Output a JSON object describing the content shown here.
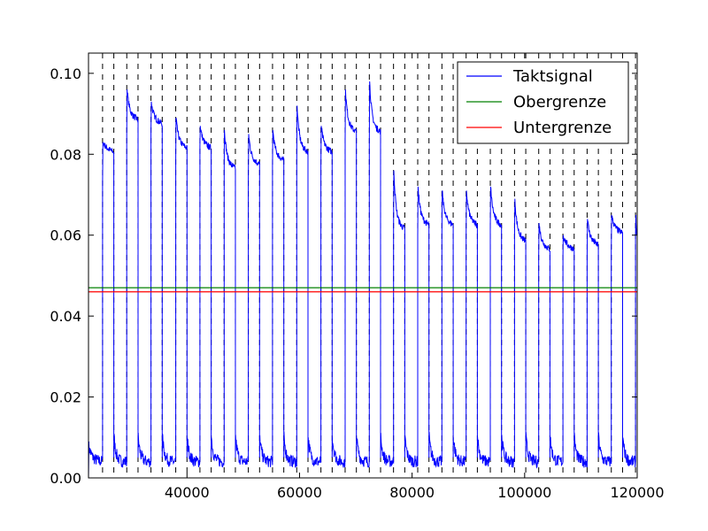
{
  "chart_data": {
    "type": "line",
    "title": "",
    "xlabel": "",
    "ylabel": "",
    "xlim": [
      22500,
      120000
    ],
    "ylim": [
      0,
      0.105
    ],
    "x_ticks": [
      40000,
      60000,
      80000,
      100000,
      120000
    ],
    "x_tick_labels": [
      "40000",
      "60000",
      "80000",
      "100000",
      "120000"
    ],
    "y_ticks": [
      0.0,
      0.02,
      0.04,
      0.06,
      0.08,
      0.1
    ],
    "y_tick_labels": [
      "0.00",
      "0.02",
      "0.04",
      "0.06",
      "0.08",
      "0.10"
    ],
    "grid": false,
    "legend_position": "top-right",
    "series": [
      {
        "name": "Taktsignal",
        "color": "#0000ff",
        "style": "solid"
      },
      {
        "name": "Obergrenze",
        "color": "#008000",
        "style": "solid",
        "value": 0.047
      },
      {
        "name": "Untergrenze",
        "color": "#ff0000",
        "style": "solid",
        "value": 0.046
      }
    ],
    "pulses": [
      {
        "rise": 25000,
        "fall": 27000,
        "start": 0.073,
        "peak": 0.083,
        "level": 0.082
      },
      {
        "rise": 29300,
        "fall": 31300,
        "start": 0.085,
        "peak": 0.096,
        "level": 0.09
      },
      {
        "rise": 33600,
        "fall": 35600,
        "start": 0.086,
        "peak": 0.093,
        "level": 0.089
      },
      {
        "rise": 38000,
        "fall": 40000,
        "start": 0.079,
        "peak": 0.089,
        "level": 0.083
      },
      {
        "rise": 42300,
        "fall": 44300,
        "start": 0.082,
        "peak": 0.087,
        "level": 0.083
      },
      {
        "rise": 46600,
        "fall": 48600,
        "start": 0.077,
        "peak": 0.086,
        "level": 0.078
      },
      {
        "rise": 50900,
        "fall": 52900,
        "start": 0.074,
        "peak": 0.085,
        "level": 0.079
      },
      {
        "rise": 55200,
        "fall": 57200,
        "start": 0.077,
        "peak": 0.086,
        "level": 0.08
      },
      {
        "rise": 59500,
        "fall": 61500,
        "start": 0.078,
        "peak": 0.092,
        "level": 0.082
      },
      {
        "rise": 63800,
        "fall": 65800,
        "start": 0.077,
        "peak": 0.087,
        "level": 0.082
      },
      {
        "rise": 68100,
        "fall": 70100,
        "start": 0.084,
        "peak": 0.096,
        "level": 0.087
      },
      {
        "rise": 72400,
        "fall": 74400,
        "start": 0.083,
        "peak": 0.098,
        "level": 0.087
      },
      {
        "rise": 76700,
        "fall": 78700,
        "start": 0.062,
        "peak": 0.076,
        "level": 0.063
      },
      {
        "rise": 81000,
        "fall": 83000,
        "start": 0.06,
        "peak": 0.072,
        "level": 0.064
      },
      {
        "rise": 85300,
        "fall": 87300,
        "start": 0.06,
        "peak": 0.071,
        "level": 0.064
      },
      {
        "rise": 89600,
        "fall": 91600,
        "start": 0.06,
        "peak": 0.071,
        "level": 0.064
      },
      {
        "rise": 93900,
        "fall": 95900,
        "start": 0.062,
        "peak": 0.072,
        "level": 0.064
      },
      {
        "rise": 98200,
        "fall": 100200,
        "start": 0.059,
        "peak": 0.069,
        "level": 0.06
      },
      {
        "rise": 102500,
        "fall": 104500,
        "start": 0.055,
        "peak": 0.063,
        "level": 0.058
      },
      {
        "rise": 106800,
        "fall": 108800,
        "start": 0.055,
        "peak": 0.06,
        "level": 0.058
      },
      {
        "rise": 111100,
        "fall": 113100,
        "start": 0.055,
        "peak": 0.064,
        "level": 0.059
      },
      {
        "rise": 115400,
        "fall": 117400,
        "start": 0.056,
        "peak": 0.065,
        "level": 0.062
      },
      {
        "rise": 119700,
        "fall": 121700,
        "start": 0.06,
        "peak": 0.065,
        "level": 0.061
      }
    ],
    "low_level": 0.004,
    "vlines_x": [
      25000,
      27000,
      29300,
      31300,
      33600,
      35600,
      38000,
      40000,
      42300,
      44300,
      46600,
      48600,
      50900,
      52900,
      55200,
      57200,
      59500,
      61500,
      63800,
      65800,
      68100,
      70100,
      72400,
      74400,
      76700,
      78700,
      81000,
      83000,
      85300,
      87300,
      89600,
      91600,
      93900,
      95900,
      98200,
      100200,
      102500,
      104500,
      106800,
      108800,
      111100,
      113100,
      115400,
      117400,
      119700
    ]
  }
}
